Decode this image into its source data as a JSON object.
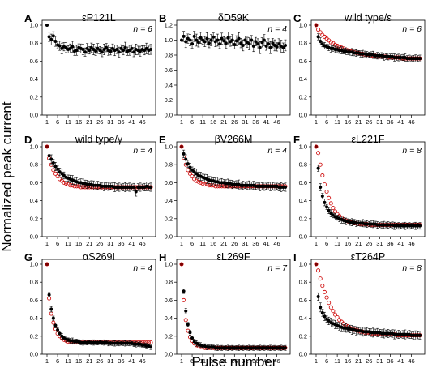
{
  "figure": {
    "xlabel": "Pulse number",
    "ylabel": "Normalized peak current"
  },
  "chart_data": [
    {
      "panel": "A",
      "title": "εP121L",
      "n": "n = 6",
      "type": "scatter",
      "ylim": [
        0,
        1.0
      ],
      "yticks": [
        "0.0",
        "0.2",
        "0.4",
        "0.6",
        "0.8",
        "1.0"
      ],
      "xticks": [
        "1",
        "6",
        "11",
        "16",
        "21",
        "26",
        "31",
        "36",
        "41",
        "46"
      ],
      "series": [
        {
          "values": [
            1.0,
            0.87,
            0.84,
            0.88,
            0.82,
            0.78,
            0.77,
            0.74,
            0.76,
            0.75,
            0.73,
            0.74,
            0.76,
            0.71,
            0.72,
            0.75,
            0.74,
            0.73,
            0.7,
            0.74,
            0.72,
            0.75,
            0.73,
            0.71,
            0.74,
            0.72,
            0.7,
            0.73,
            0.75,
            0.72,
            0.71,
            0.74,
            0.72,
            0.73,
            0.7,
            0.74,
            0.72,
            0.75,
            0.71,
            0.72,
            0.74,
            0.7,
            0.73,
            0.72,
            0.71,
            0.73,
            0.72,
            0.74,
            0.72,
            0.73
          ],
          "err": 0.06
        }
      ]
    },
    {
      "panel": "B",
      "title": "δD59K",
      "n": "n = 4",
      "type": "scatter",
      "ylim": [
        0,
        1.2
      ],
      "yticks": [
        "0.0",
        "0.2",
        "0.4",
        "0.6",
        "0.8",
        "1.0",
        "1.2"
      ],
      "xticks": [
        "1",
        "6",
        "11",
        "16",
        "21",
        "26",
        "31",
        "36",
        "41",
        "46"
      ],
      "series": [
        {
          "values": [
            1.0,
            1.05,
            0.98,
            1.02,
            1.0,
            0.95,
            1.05,
            1.0,
            0.97,
            1.03,
            1.0,
            0.98,
            1.02,
            0.96,
            1.0,
            1.04,
            0.98,
            1.0,
            0.95,
            1.02,
            0.99,
            0.96,
            1.03,
            0.98,
            1.0,
            0.94,
            0.99,
            1.02,
            0.96,
            0.93,
            1.0,
            0.97,
            0.95,
            1.0,
            0.92,
            0.98,
            0.95,
            0.9,
            0.97,
            1.0,
            0.92,
            0.95,
            0.9,
            0.96,
            0.93,
            0.91,
            0.95,
            0.92,
            0.9,
            0.93
          ],
          "err": 0.08
        }
      ]
    },
    {
      "panel": "C",
      "title": "wild type/ε",
      "n": "n = 6",
      "type": "scatter",
      "ylim": [
        0,
        1.0
      ],
      "yticks": [
        "0.0",
        "0.2",
        "0.4",
        "0.6",
        "0.8",
        "1.0"
      ],
      "xticks": [
        "1",
        "6",
        "11",
        "16",
        "21",
        "26",
        "31",
        "36",
        "41",
        "46"
      ],
      "series": [
        {
          "values": [
            1.0,
            0.87,
            0.82,
            0.79,
            0.77,
            0.76,
            0.75,
            0.74,
            0.74,
            0.73,
            0.73,
            0.72,
            0.72,
            0.71,
            0.71,
            0.7,
            0.7,
            0.7,
            0.69,
            0.69,
            0.69,
            0.68,
            0.68,
            0.68,
            0.67,
            0.67,
            0.67,
            0.67,
            0.66,
            0.66,
            0.66,
            0.66,
            0.65,
            0.65,
            0.65,
            0.65,
            0.65,
            0.64,
            0.64,
            0.64,
            0.64,
            0.64,
            0.64,
            0.63,
            0.63,
            0.63,
            0.63,
            0.63,
            0.63,
            0.63
          ],
          "err": 0.04
        },
        {
          "values": [
            1.0,
            0.95,
            0.92,
            0.89,
            0.87,
            0.85,
            0.83,
            0.81,
            0.8,
            0.78,
            0.77,
            0.76,
            0.75,
            0.74,
            0.73,
            0.72,
            0.71,
            0.71,
            0.7,
            0.69,
            0.69,
            0.68,
            0.68,
            0.67,
            0.67,
            0.67,
            0.66,
            0.66,
            0.66,
            0.65,
            0.65,
            0.65,
            0.65,
            0.65,
            0.64,
            0.64,
            0.64,
            0.64,
            0.64,
            0.64,
            0.63,
            0.63,
            0.63,
            0.63,
            0.63,
            0.63,
            0.63,
            0.63,
            0.63,
            0.63
          ],
          "err": 0
        }
      ]
    },
    {
      "panel": "D",
      "title": "wild type/γ",
      "n": "n = 4",
      "type": "scatter",
      "ylim": [
        0,
        1.0
      ],
      "yticks": [
        "0.0",
        "0.2",
        "0.4",
        "0.6",
        "0.8",
        "1.0"
      ],
      "xticks": [
        "1",
        "6",
        "11",
        "16",
        "21",
        "26",
        "31",
        "36",
        "41",
        "46"
      ],
      "series": [
        {
          "values": [
            1.0,
            0.9,
            0.86,
            0.82,
            0.78,
            0.75,
            0.72,
            0.7,
            0.68,
            0.66,
            0.65,
            0.64,
            0.63,
            0.62,
            0.61,
            0.6,
            0.6,
            0.59,
            0.59,
            0.58,
            0.58,
            0.58,
            0.57,
            0.57,
            0.57,
            0.57,
            0.56,
            0.56,
            0.56,
            0.56,
            0.56,
            0.56,
            0.55,
            0.55,
            0.55,
            0.55,
            0.55,
            0.55,
            0.55,
            0.55,
            0.55,
            0.55,
            0.5,
            0.55,
            0.55,
            0.55,
            0.55,
            0.56,
            0.55,
            0.55
          ],
          "err": 0.05
        },
        {
          "values": [
            1.0,
            0.87,
            0.8,
            0.74,
            0.7,
            0.67,
            0.64,
            0.62,
            0.6,
            0.59,
            0.58,
            0.57,
            0.57,
            0.56,
            0.56,
            0.56,
            0.55,
            0.55,
            0.55,
            0.55,
            0.55,
            0.55,
            0.55,
            0.55,
            0.55,
            0.55,
            0.55,
            0.55,
            0.55,
            0.55,
            0.55,
            0.55,
            0.55,
            0.55,
            0.55,
            0.55,
            0.55,
            0.55,
            0.55,
            0.55,
            0.55,
            0.55,
            0.55,
            0.55,
            0.55,
            0.55,
            0.55,
            0.55,
            0.55,
            0.55
          ],
          "err": 0
        }
      ]
    },
    {
      "panel": "E",
      "title": "βV266M",
      "n": "n = 4",
      "type": "scatter",
      "ylim": [
        0,
        1.0
      ],
      "yticks": [
        "0.0",
        "0.2",
        "0.4",
        "0.6",
        "0.8",
        "1.0"
      ],
      "xticks": [
        "1",
        "6",
        "11",
        "16",
        "21",
        "26",
        "31",
        "36",
        "41",
        "46"
      ],
      "series": [
        {
          "values": [
            1.0,
            0.92,
            0.86,
            0.81,
            0.77,
            0.74,
            0.72,
            0.7,
            0.68,
            0.67,
            0.66,
            0.65,
            0.64,
            0.63,
            0.62,
            0.62,
            0.61,
            0.61,
            0.6,
            0.6,
            0.6,
            0.59,
            0.59,
            0.59,
            0.58,
            0.58,
            0.58,
            0.58,
            0.57,
            0.57,
            0.57,
            0.57,
            0.57,
            0.57,
            0.57,
            0.56,
            0.56,
            0.56,
            0.56,
            0.56,
            0.56,
            0.56,
            0.56,
            0.56,
            0.56,
            0.56,
            0.55,
            0.55,
            0.55,
            0.55
          ],
          "err": 0.05
        },
        {
          "values": [
            1.0,
            0.88,
            0.8,
            0.74,
            0.7,
            0.67,
            0.64,
            0.62,
            0.61,
            0.6,
            0.59,
            0.58,
            0.58,
            0.57,
            0.57,
            0.57,
            0.56,
            0.56,
            0.56,
            0.56,
            0.56,
            0.56,
            0.56,
            0.56,
            0.56,
            0.56,
            0.56,
            0.56,
            0.56,
            0.56,
            0.56,
            0.56,
            0.56,
            0.56,
            0.56,
            0.56,
            0.56,
            0.56,
            0.56,
            0.56,
            0.56,
            0.56,
            0.56,
            0.56,
            0.56,
            0.56,
            0.56,
            0.56,
            0.56,
            0.56
          ],
          "err": 0
        }
      ]
    },
    {
      "panel": "F",
      "title": "εL221F",
      "n": "n = 8",
      "type": "scatter",
      "ylim": [
        0,
        1.0
      ],
      "yticks": [
        "0.0",
        "0.2",
        "0.4",
        "0.6",
        "0.8",
        "1.0"
      ],
      "xticks": [
        "1",
        "6",
        "11",
        "16",
        "21",
        "26",
        "31",
        "36",
        "41",
        "46"
      ],
      "series": [
        {
          "values": [
            1.0,
            0.76,
            0.55,
            0.45,
            0.38,
            0.33,
            0.29,
            0.26,
            0.24,
            0.22,
            0.21,
            0.2,
            0.19,
            0.18,
            0.17,
            0.17,
            0.16,
            0.16,
            0.16,
            0.15,
            0.15,
            0.15,
            0.15,
            0.14,
            0.14,
            0.14,
            0.14,
            0.14,
            0.14,
            0.13,
            0.13,
            0.13,
            0.13,
            0.13,
            0.13,
            0.13,
            0.13,
            0.12,
            0.12,
            0.12,
            0.12,
            0.12,
            0.12,
            0.12,
            0.12,
            0.12,
            0.12,
            0.12,
            0.12,
            0.12
          ],
          "err": 0.04
        },
        {
          "values": [
            1.0,
            0.93,
            0.8,
            0.68,
            0.58,
            0.5,
            0.43,
            0.37,
            0.32,
            0.28,
            0.25,
            0.23,
            0.21,
            0.19,
            0.18,
            0.17,
            0.16,
            0.16,
            0.15,
            0.15,
            0.14,
            0.14,
            0.14,
            0.14,
            0.14,
            0.13,
            0.13,
            0.13,
            0.13,
            0.13,
            0.13,
            0.13,
            0.13,
            0.13,
            0.13,
            0.13,
            0.13,
            0.13,
            0.13,
            0.13,
            0.13,
            0.13,
            0.13,
            0.13,
            0.13,
            0.13,
            0.13,
            0.13,
            0.13,
            0.13
          ],
          "err": 0
        }
      ]
    },
    {
      "panel": "G",
      "title": "αS269I",
      "n": "n = 4",
      "type": "scatter",
      "ylim": [
        0,
        1.0
      ],
      "yticks": [
        "0.0",
        "0.2",
        "0.4",
        "0.6",
        "0.8",
        "1.0"
      ],
      "xticks": [
        "1",
        "6",
        "11",
        "16",
        "21",
        "26",
        "31",
        "36",
        "41",
        "46"
      ],
      "series": [
        {
          "values": [
            1.0,
            0.66,
            0.5,
            0.4,
            0.32,
            0.27,
            0.23,
            0.2,
            0.18,
            0.17,
            0.16,
            0.15,
            0.15,
            0.14,
            0.14,
            0.14,
            0.13,
            0.13,
            0.13,
            0.13,
            0.13,
            0.13,
            0.13,
            0.13,
            0.13,
            0.13,
            0.13,
            0.13,
            0.13,
            0.12,
            0.12,
            0.12,
            0.12,
            0.12,
            0.12,
            0.12,
            0.12,
            0.12,
            0.12,
            0.12,
            0.12,
            0.11,
            0.11,
            0.11,
            0.11,
            0.1,
            0.1,
            0.09,
            0.09,
            0.08
          ],
          "err": 0.03
        },
        {
          "values": [
            1.0,
            0.62,
            0.45,
            0.35,
            0.28,
            0.23,
            0.2,
            0.18,
            0.16,
            0.15,
            0.14,
            0.14,
            0.13,
            0.13,
            0.13,
            0.13,
            0.13,
            0.13,
            0.13,
            0.13,
            0.13,
            0.13,
            0.13,
            0.13,
            0.13,
            0.13,
            0.13,
            0.13,
            0.13,
            0.13,
            0.13,
            0.13,
            0.13,
            0.13,
            0.13,
            0.13,
            0.13,
            0.13,
            0.13,
            0.13,
            0.13,
            0.13,
            0.13,
            0.13,
            0.13,
            0.13,
            0.13,
            0.13,
            0.13,
            0.13
          ],
          "err": 0
        }
      ]
    },
    {
      "panel": "H",
      "title": "εL269F",
      "n": "n = 7",
      "type": "scatter",
      "ylim": [
        0,
        1.0
      ],
      "yticks": [
        "0.0",
        "0.2",
        "0.4",
        "0.6",
        "0.8",
        "1.0"
      ],
      "xticks": [
        "1",
        "6",
        "11",
        "16",
        "21",
        "26",
        "31",
        "36",
        "41",
        "46"
      ],
      "series": [
        {
          "values": [
            1.0,
            0.7,
            0.48,
            0.33,
            0.24,
            0.18,
            0.14,
            0.12,
            0.11,
            0.1,
            0.09,
            0.09,
            0.08,
            0.08,
            0.08,
            0.08,
            0.07,
            0.07,
            0.07,
            0.07,
            0.07,
            0.07,
            0.07,
            0.07,
            0.07,
            0.07,
            0.07,
            0.07,
            0.07,
            0.07,
            0.07,
            0.07,
            0.07,
            0.07,
            0.07,
            0.07,
            0.07,
            0.07,
            0.07,
            0.07,
            0.07,
            0.07,
            0.07,
            0.07,
            0.07,
            0.07,
            0.07,
            0.07,
            0.07,
            0.07
          ],
          "err": 0.03
        },
        {
          "values": [
            1.0,
            0.6,
            0.38,
            0.26,
            0.19,
            0.15,
            0.12,
            0.1,
            0.09,
            0.08,
            0.08,
            0.07,
            0.07,
            0.07,
            0.07,
            0.07,
            0.07,
            0.07,
            0.07,
            0.07,
            0.07,
            0.07,
            0.07,
            0.07,
            0.07,
            0.07,
            0.07,
            0.07,
            0.07,
            0.07,
            0.07,
            0.07,
            0.07,
            0.07,
            0.07,
            0.07,
            0.07,
            0.07,
            0.07,
            0.07,
            0.07,
            0.07,
            0.07,
            0.07,
            0.07,
            0.07,
            0.07,
            0.07,
            0.07,
            0.07
          ],
          "err": 0
        }
      ]
    },
    {
      "panel": "I",
      "title": "εT264P",
      "n": "n = 8",
      "type": "scatter",
      "ylim": [
        0,
        1.0
      ],
      "yticks": [
        "0.0",
        "0.2",
        "0.4",
        "0.6",
        "0.8",
        "1.0"
      ],
      "xticks": [
        "1",
        "6",
        "11",
        "16",
        "21",
        "26",
        "31",
        "36",
        "41",
        "46"
      ],
      "series": [
        {
          "values": [
            1.0,
            0.64,
            0.52,
            0.46,
            0.42,
            0.39,
            0.37,
            0.35,
            0.34,
            0.33,
            0.32,
            0.31,
            0.3,
            0.29,
            0.29,
            0.28,
            0.28,
            0.27,
            0.27,
            0.26,
            0.26,
            0.26,
            0.25,
            0.25,
            0.25,
            0.25,
            0.24,
            0.24,
            0.24,
            0.24,
            0.24,
            0.23,
            0.23,
            0.23,
            0.23,
            0.23,
            0.23,
            0.22,
            0.22,
            0.22,
            0.22,
            0.22,
            0.22,
            0.22,
            0.22,
            0.21,
            0.21,
            0.21,
            0.21,
            0.21
          ],
          "err": 0.05
        },
        {
          "values": [
            1.0,
            0.93,
            0.84,
            0.76,
            0.69,
            0.63,
            0.57,
            0.52,
            0.48,
            0.44,
            0.41,
            0.38,
            0.36,
            0.34,
            0.32,
            0.31,
            0.29,
            0.28,
            0.27,
            0.27,
            0.26,
            0.25,
            0.25,
            0.24,
            0.24,
            0.24,
            0.23,
            0.23,
            0.23,
            0.23,
            0.22,
            0.22,
            0.22,
            0.22,
            0.22,
            0.22,
            0.22,
            0.22,
            0.21,
            0.21,
            0.21,
            0.21,
            0.21,
            0.21,
            0.21,
            0.21,
            0.21,
            0.21,
            0.21,
            0.21
          ],
          "err": 0
        }
      ]
    }
  ]
}
